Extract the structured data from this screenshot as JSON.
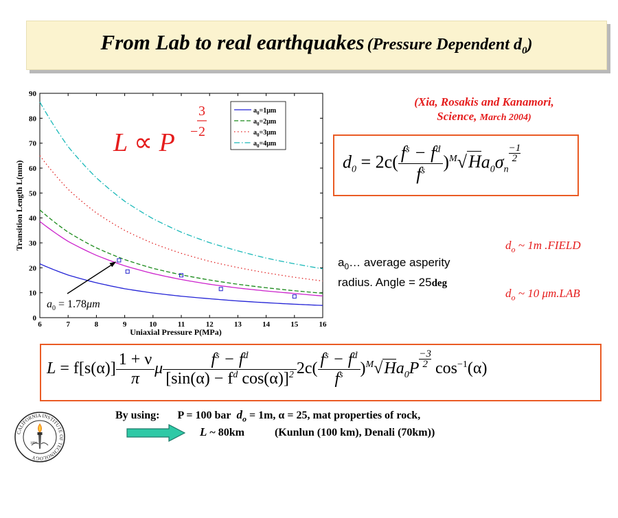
{
  "title": {
    "main": "From Lab to real earthquakes",
    "sub": "(Pressure Dependent d",
    "sub_subscript": "0",
    "sub_close": ")"
  },
  "citation": {
    "line1": "(Xia, Rosakis and Kanamori,",
    "line2_a": "Science,",
    "line2_b": "March 2004)"
  },
  "chart_data": {
    "type": "line",
    "xlabel": "Uniaxial Pressure P(MPa)",
    "ylabel": "Transition Length L(mm)",
    "xlim": [
      6,
      16
    ],
    "ylim": [
      0,
      90
    ],
    "x_ticks": [
      "6",
      "7",
      "8",
      "9",
      "10",
      "11",
      "12",
      "13",
      "14",
      "15",
      "16"
    ],
    "y_ticks": [
      "0",
      "10",
      "20",
      "30",
      "40",
      "50",
      "60",
      "70",
      "80",
      "90"
    ],
    "x": [
      6,
      7,
      8,
      9,
      10,
      11,
      12,
      13,
      14,
      15,
      16
    ],
    "series": [
      {
        "name": "a0=1μm",
        "color": "#2323d6",
        "dash": "solid",
        "values": [
          21.6,
          17.1,
          14.0,
          11.6,
          9.9,
          8.6,
          7.6,
          6.7,
          6.0,
          5.4,
          4.9
        ]
      },
      {
        "name": "a0=2μm",
        "color": "#1a8a1a",
        "dash": "dashed",
        "values": [
          43.2,
          34.3,
          28.0,
          23.3,
          19.8,
          17.2,
          15.1,
          13.4,
          12.0,
          10.8,
          9.8
        ]
      },
      {
        "name": "a0=3μm",
        "color": "#e02020",
        "dash": "dotted",
        "values": [
          65.0,
          51.5,
          42.0,
          35.0,
          29.8,
          25.8,
          22.6,
          20.1,
          18.0,
          16.2,
          14.7
        ]
      },
      {
        "name": "a0=4μm",
        "color": "#18b8b8",
        "dash": "dashdot",
        "values": [
          86.5,
          68.6,
          56.1,
          46.7,
          39.7,
          34.3,
          30.1,
          26.8,
          23.9,
          21.6,
          19.6
        ]
      },
      {
        "name": "",
        "color": "#cc22cc",
        "dash": "solid",
        "values": [
          38.6,
          30.6,
          25.0,
          20.8,
          17.7,
          15.3,
          13.4,
          11.9,
          10.7,
          9.7,
          8.7
        ]
      }
    ],
    "measured_points": {
      "color": "#2020cc",
      "points": [
        [
          8.8,
          23.0
        ],
        [
          9.1,
          18.5
        ],
        [
          11.0,
          17.0
        ],
        [
          12.4,
          11.5
        ],
        [
          15.0,
          8.5
        ]
      ]
    },
    "legend_placement": "top-right",
    "legend": [
      {
        "base": "a",
        "sub": "0",
        "rest": "=1μm"
      },
      {
        "base": "a",
        "sub": "0",
        "rest": "=2μm"
      },
      {
        "base": "a",
        "sub": "0",
        "rest": "=3μm"
      },
      {
        "base": "a",
        "sub": "0",
        "rest": "=4μm"
      }
    ],
    "annotation": {
      "text_a": "a",
      "text_sub": "0",
      "text_rest": " = 1.78",
      "unit": "μm",
      "arrow_target": [
        8.7,
        22.5
      ]
    },
    "scaling_law": {
      "lhs": "L",
      "op": "∝",
      "base": "P",
      "exp_sign": "−",
      "exp_num": "3",
      "exp_den": "2"
    }
  },
  "equation_d0": {
    "lhs": "d",
    "lhs_sub": "0",
    "eq": " = 2c(",
    "num": "f^s − f^d",
    "num_a": "f",
    "num_a_sup": "s",
    "num_b": " − f",
    "num_b_sup": "d",
    "den_a": "f",
    "den_a_sup": "s",
    "close": ")",
    "close_sup": "M",
    "sqrt": "√",
    "radicand": "H",
    "tail_a": "a",
    "tail_a_sub": "0",
    "tail_b": "σ",
    "tail_b_sub": "n",
    "exp_sign": "−",
    "exp_num": "1",
    "exp_den": "2"
  },
  "field_note": {
    "d": "d",
    "d_sub": "o",
    "text": " ~ 1m .FIELD"
  },
  "lab_note": {
    "d": "d",
    "d_sub": "o",
    "text": " ~ 10 μm.LAB"
  },
  "asperity_note": {
    "a": "a",
    "a_sub": "0",
    "line1_rest": "… average asperity",
    "line2": "radius.  Angle = 25",
    "deg": "deg"
  },
  "equation_L": {
    "lhs": "L",
    "eq": " = f[s(α)]",
    "frac1_num": "1 + ν",
    "frac1_den": "π",
    "mu": "μ",
    "frac2_num_a": "f",
    "frac2_num_a_sup": "s",
    "frac2_num_b": " − f",
    "frac2_num_b_sup": "d",
    "frac2_den": "[sin(α) − f",
    "frac2_den_sup": "d",
    "frac2_den_rest": " cos(α)]",
    "frac2_den_sq": "2",
    "mid": "2c(",
    "frac3_num_a": "f",
    "frac3_num_a_sup": "s",
    "frac3_num_b": " − f",
    "frac3_num_b_sup": "d",
    "frac3_den": "f",
    "frac3_den_sup": "s",
    "close": ")",
    "close_sup": "M",
    "sqrt": "√",
    "radicand": "H",
    "tail_a": "a",
    "tail_a_sub": "0",
    "tail_p": "P",
    "exp_sign": "−",
    "exp_num": "3",
    "exp_den": "2",
    "cos": " cos",
    "cos_sup": "−1",
    "cos_arg": "(α)"
  },
  "using": {
    "label": "By using:",
    "params_a": "P = 100 bar",
    "params_d": "d",
    "params_d_sub": "o",
    "params_b": " = 1m, α = 25, mat properties of rock,",
    "result_L": "L",
    "result_rest": " ~ 80km",
    "examples": "(Kunlun (100 km), Denali (70km))"
  },
  "seal": {
    "text": "CALIFORNIA INSTITUTE OF TECHNOLOGY",
    "year": "1891"
  },
  "colors": {
    "title_bg": "#fbf3cf",
    "red": "#e51d1d",
    "box_border": "#ea5b24",
    "arrow": "#2ec9a6"
  }
}
